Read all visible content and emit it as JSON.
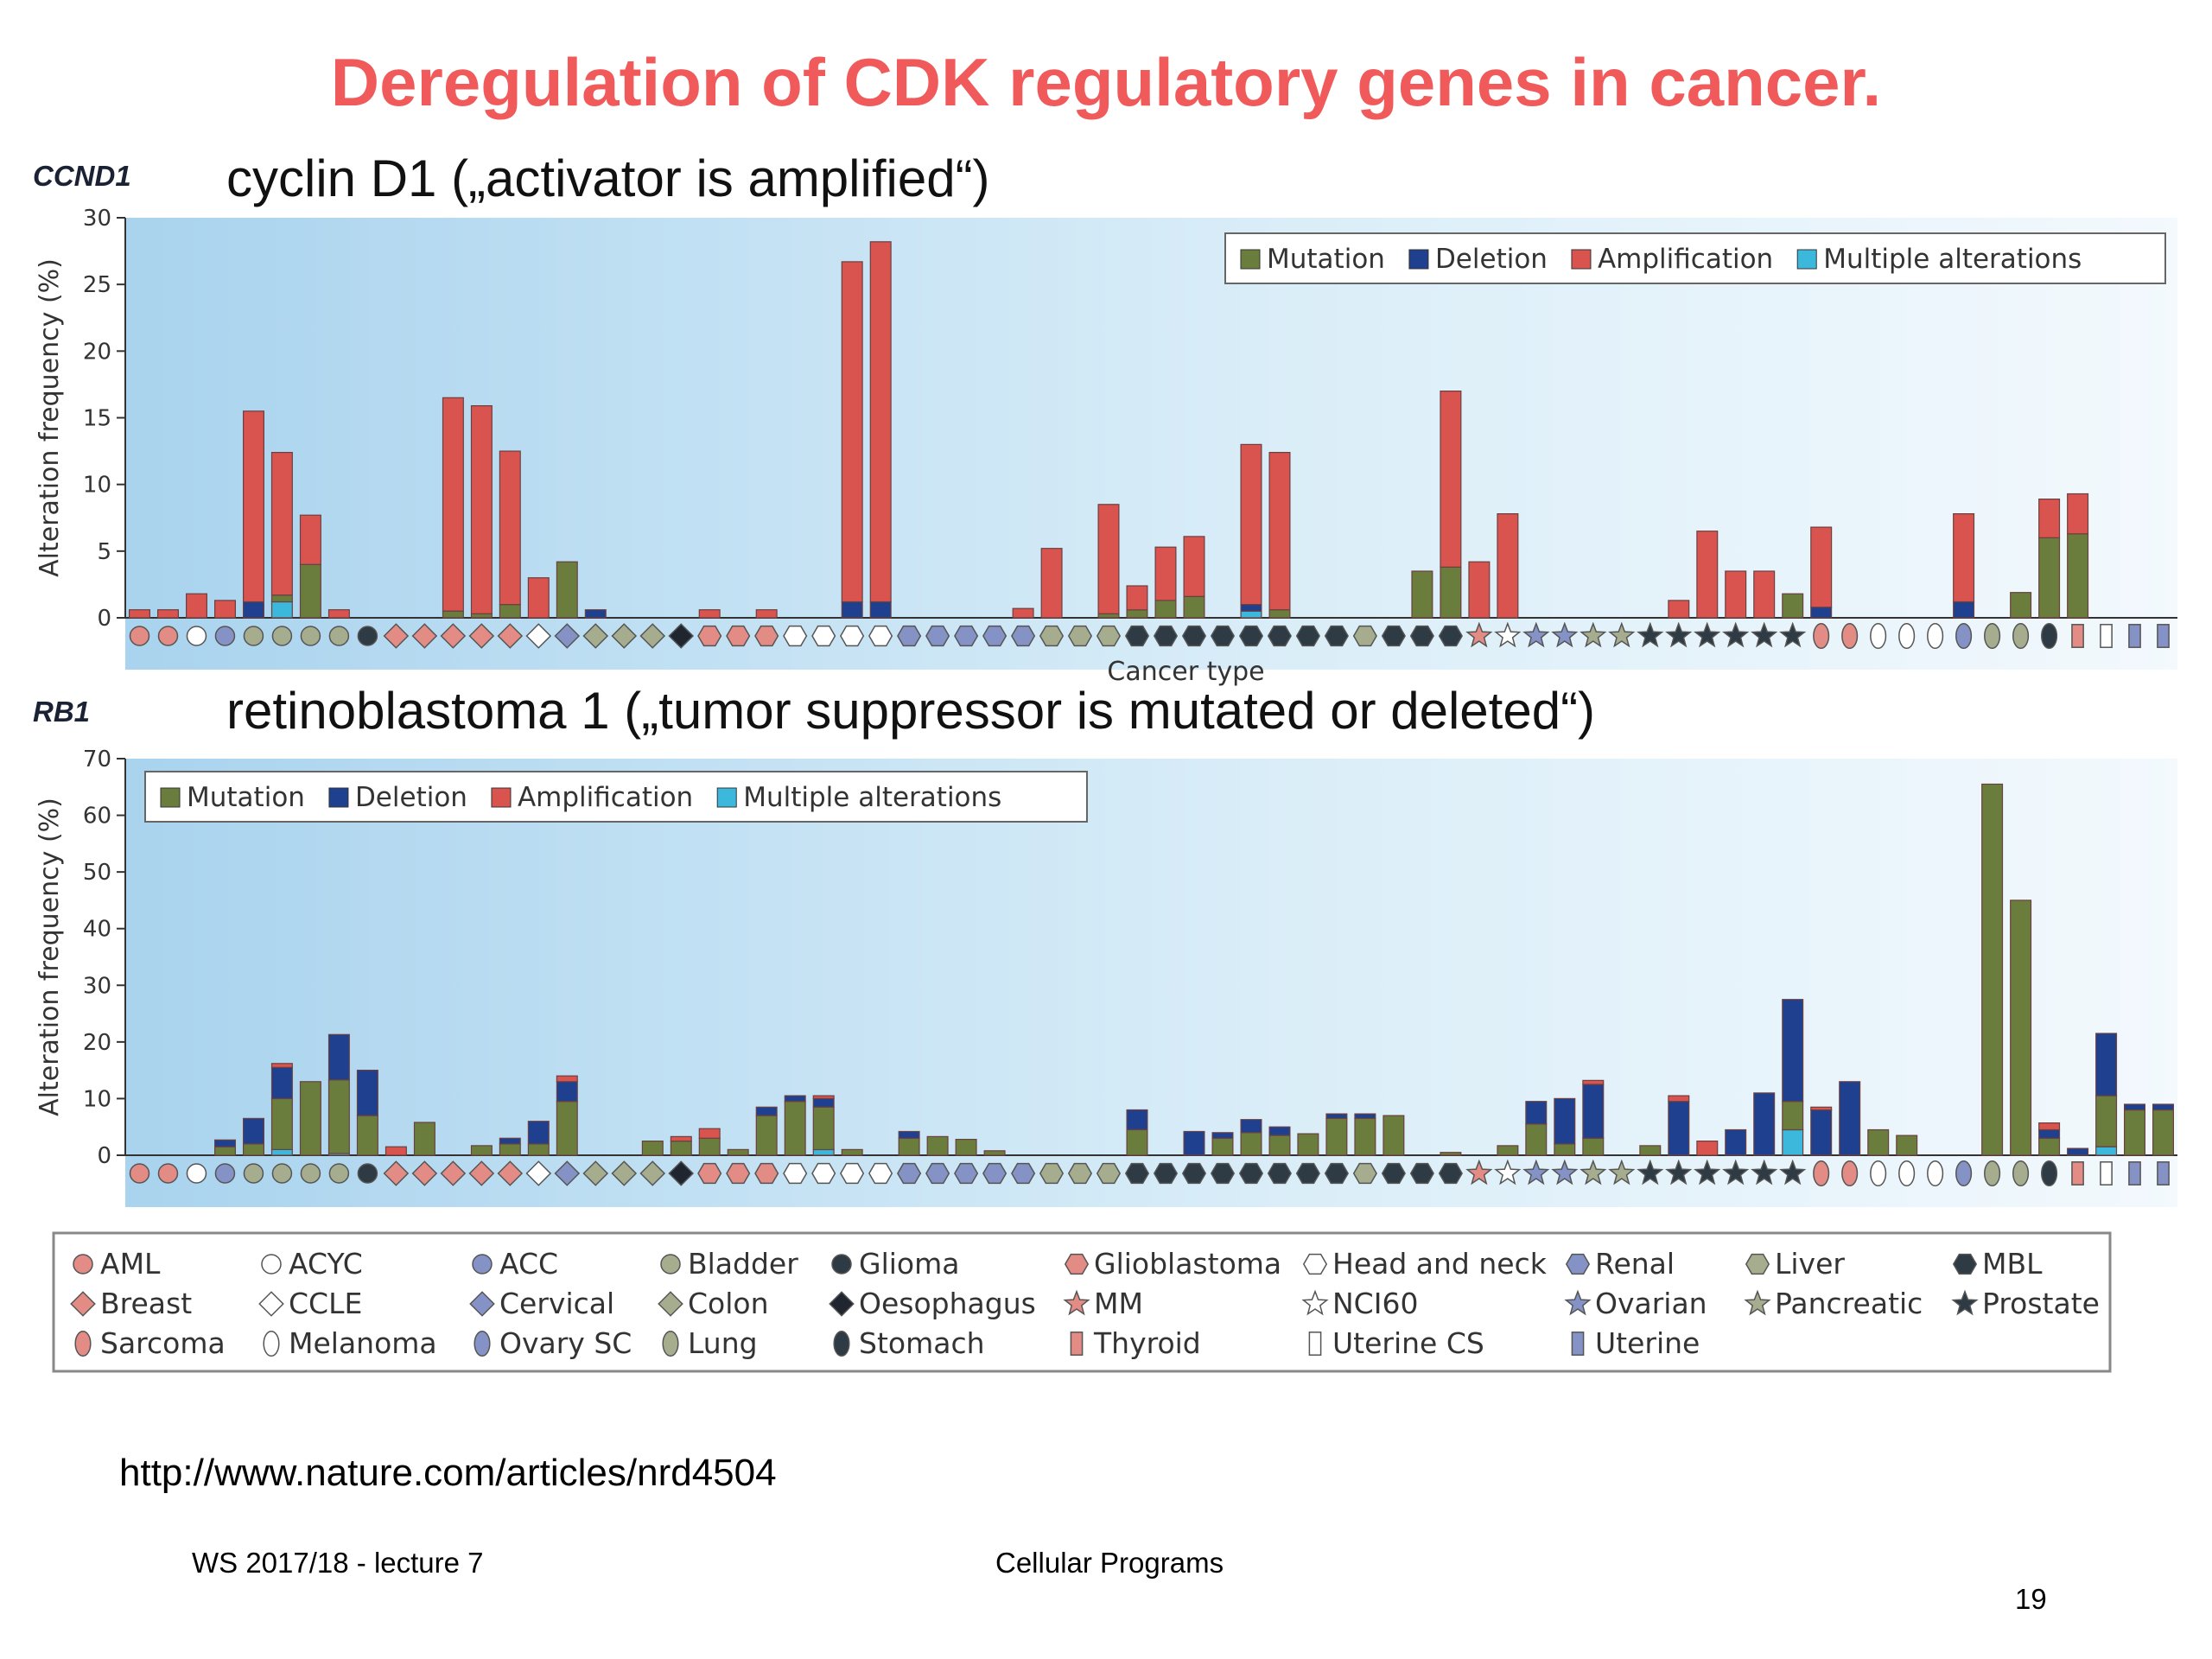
{
  "slide": {
    "title": "Deregulation of CDK regulatory genes in cancer.",
    "top_gene": "CCND1",
    "top_subtitle": "cyclin D1 („activator is amplified“)",
    "bottom_gene": "RB1",
    "bottom_subtitle": "retinoblastoma 1 („tumor suppressor is mutated or deleted“)",
    "url": "http://www.nature.com/articles/nrd4504",
    "footer_left": "WS 2017/18 - lecture 7",
    "footer_center": "Cellular Programs",
    "page_number": "19"
  },
  "colors": {
    "title": "#f05a5a",
    "Mutation": "#6b7d3c",
    "Deletion": "#1f3f8f",
    "Amplification": "#d9534f",
    "Multiple alterations": "#3cb8dd"
  },
  "legend_keys": [
    "Mutation",
    "Deletion",
    "Amplification",
    "Multiple alterations"
  ],
  "chart_data": [
    {
      "type": "bar",
      "stacked": true,
      "gene": "CCND1",
      "ylabel": "Alteration frequency (%)",
      "xlabel": "Cancer type",
      "ylim": [
        0,
        30
      ],
      "yticks": [
        0,
        5,
        10,
        15,
        20,
        25,
        30
      ],
      "legend_position": "top-right",
      "bars": [
        [
          0,
          0,
          0.6,
          0
        ],
        [
          0,
          0,
          0.6,
          0
        ],
        [
          0,
          0,
          1.8,
          0
        ],
        [
          0,
          0,
          1.3,
          0
        ],
        [
          0,
          1.2,
          14.3,
          0
        ],
        [
          0.5,
          0,
          10.7,
          1.2
        ],
        [
          4.0,
          0,
          3.7,
          0
        ],
        [
          0,
          0,
          0.6,
          0
        ],
        null,
        null,
        null,
        [
          0.5,
          0,
          16.0,
          0
        ],
        [
          0.3,
          0,
          15.6,
          0
        ],
        [
          1.0,
          0,
          11.5,
          0
        ],
        [
          0,
          0,
          3.0,
          0
        ],
        [
          4.2,
          0,
          0,
          0
        ],
        [
          0,
          0.6,
          0,
          0
        ],
        null,
        null,
        null,
        [
          0,
          0,
          0.6,
          0
        ],
        null,
        [
          0,
          0,
          0.6,
          0
        ],
        null,
        null,
        [
          0,
          1.2,
          25.5,
          0
        ],
        [
          0,
          1.2,
          27.0,
          0
        ],
        null,
        null,
        null,
        null,
        [
          0,
          0,
          0.7,
          0
        ],
        [
          0,
          0,
          5.2,
          0
        ],
        null,
        [
          0.3,
          0,
          8.2,
          0
        ],
        [
          0.6,
          0,
          1.8,
          0
        ],
        [
          1.3,
          0,
          4.0,
          0
        ],
        [
          1.6,
          0,
          4.5,
          0
        ],
        null,
        [
          0,
          0.5,
          12.0,
          0.5
        ],
        [
          0.6,
          0,
          11.8,
          0
        ],
        null,
        null,
        null,
        null,
        [
          3.5,
          0,
          0,
          0
        ],
        [
          3.8,
          0,
          13.2,
          0
        ],
        [
          0,
          0,
          4.2,
          0
        ],
        [
          0,
          0,
          7.8,
          0
        ],
        null,
        null,
        null,
        null,
        null,
        [
          0,
          0,
          1.3,
          0
        ],
        [
          0,
          0,
          6.5,
          0
        ],
        [
          0,
          0,
          3.5,
          0
        ],
        [
          0,
          0,
          3.5,
          0
        ],
        [
          1.8,
          0,
          0,
          0
        ],
        [
          0,
          0.8,
          6.0,
          0
        ],
        null,
        null,
        null,
        null,
        [
          0,
          1.2,
          6.6,
          0
        ],
        null,
        [
          1.9,
          0,
          0,
          0
        ],
        [
          6.0,
          0,
          2.9,
          0
        ],
        [
          6.3,
          0,
          3.0,
          0
        ]
      ]
    },
    {
      "type": "bar",
      "stacked": true,
      "gene": "RB1",
      "ylabel": "Alteration frequency (%)",
      "xlabel": "",
      "ylim": [
        0,
        70
      ],
      "yticks": [
        0,
        10,
        20,
        30,
        40,
        50,
        60,
        70
      ],
      "legend_position": "top-left",
      "bars": [
        null,
        null,
        null,
        [
          1.5,
          1.2,
          0,
          0
        ],
        [
          2.0,
          4.5,
          0,
          0
        ],
        [
          9.0,
          5.5,
          0.7,
          1.0
        ],
        [
          13.0,
          0,
          0,
          0
        ],
        [
          13.0,
          8.0,
          0,
          0.3
        ],
        [
          7.0,
          8.0,
          0,
          0
        ],
        [
          0,
          0,
          1.5,
          0
        ],
        [
          5.8,
          0,
          0,
          0
        ],
        null,
        [
          1.7,
          0,
          0,
          0
        ],
        [
          2.0,
          1.0,
          0,
          0
        ],
        [
          2.0,
          4.0,
          0,
          0
        ],
        [
          9.5,
          3.5,
          1.0,
          0
        ],
        null,
        null,
        [
          2.5,
          0,
          0,
          0
        ],
        [
          2.5,
          0,
          0.8,
          0
        ],
        [
          3.0,
          0,
          1.7,
          0
        ],
        [
          1.0,
          0,
          0,
          0
        ],
        [
          7.0,
          1.5,
          0,
          0
        ],
        [
          9.5,
          1.0,
          0,
          0
        ],
        [
          7.5,
          1.5,
          0.5,
          1.0
        ],
        [
          1.0,
          0,
          0,
          0
        ],
        null,
        [
          3.0,
          1.2,
          0,
          0
        ],
        [
          3.3,
          0,
          0,
          0
        ],
        [
          2.8,
          0,
          0,
          0
        ],
        [
          0.8,
          0,
          0,
          0
        ],
        null,
        null,
        null,
        null,
        [
          4.5,
          3.5,
          0,
          0
        ],
        null,
        [
          0,
          4.2,
          0,
          0
        ],
        [
          3.0,
          1.0,
          0,
          0
        ],
        [
          4.0,
          2.3,
          0,
          0
        ],
        [
          3.5,
          1.5,
          0,
          0
        ],
        [
          3.8,
          0,
          0,
          0
        ],
        [
          6.5,
          0.8,
          0,
          0
        ],
        [
          6.5,
          0.8,
          0,
          0
        ],
        [
          7.0,
          0,
          0,
          0
        ],
        null,
        [
          0.5,
          0,
          0,
          0
        ],
        null,
        [
          1.7,
          0,
          0,
          0
        ],
        [
          5.5,
          4.0,
          0,
          0
        ],
        [
          2.0,
          8.0,
          0,
          0
        ],
        [
          3.0,
          9.5,
          0.7,
          0
        ],
        null,
        [
          1.7,
          0,
          0,
          0
        ],
        [
          0,
          9.5,
          1.0,
          0
        ],
        [
          0,
          0,
          2.5,
          0
        ],
        [
          0,
          4.5,
          0,
          0
        ],
        [
          0,
          11.0,
          0,
          0
        ],
        [
          5.0,
          18.0,
          0,
          4.5
        ],
        [
          0,
          8.0,
          0.5,
          0
        ],
        [
          0,
          13.0,
          0,
          0
        ],
        [
          4.5,
          0,
          0,
          0
        ],
        [
          3.5,
          0,
          0,
          0
        ],
        null,
        null,
        [
          65.5,
          0,
          0,
          0
        ],
        [
          45.0,
          0,
          0,
          0
        ],
        [
          3.0,
          1.5,
          1.2,
          0
        ],
        [
          0,
          1.2,
          0,
          0
        ],
        [
          9.0,
          11.0,
          0,
          1.5
        ],
        [
          8.0,
          1.0,
          0,
          0
        ],
        [
          8.0,
          1.0,
          0,
          0
        ]
      ]
    }
  ],
  "cancer_types": [
    {
      "name": "AML",
      "shape": "circle",
      "color": "#e38b85"
    },
    {
      "name": "ACYC",
      "shape": "circle",
      "color": "#ffffff"
    },
    {
      "name": "ACC",
      "shape": "circle",
      "color": "#8492c6"
    },
    {
      "name": "Bladder",
      "shape": "circle",
      "color": "#a6ad8e"
    },
    {
      "name": "Glioma",
      "shape": "circle",
      "color": "#2e3a44"
    },
    {
      "name": "Glioblastoma",
      "shape": "hexagon",
      "color": "#e38b85"
    },
    {
      "name": "Head and neck",
      "shape": "hexagon",
      "color": "#ffffff"
    },
    {
      "name": "Renal",
      "shape": "hexagon",
      "color": "#8492c6"
    },
    {
      "name": "Liver",
      "shape": "hexagon",
      "color": "#a6ad8e"
    },
    {
      "name": "MBL",
      "shape": "hexagon",
      "color": "#2e3a44"
    },
    {
      "name": "Breast",
      "shape": "diamond",
      "color": "#e38b85"
    },
    {
      "name": "CCLE",
      "shape": "diamond",
      "color": "#ffffff"
    },
    {
      "name": "Cervical",
      "shape": "diamond",
      "color": "#8492c6"
    },
    {
      "name": "Colon",
      "shape": "diamond",
      "color": "#a6ad8e"
    },
    {
      "name": "Oesophagus",
      "shape": "diamond",
      "color": "#1f2630"
    },
    {
      "name": "MM",
      "shape": "star",
      "color": "#e38b85"
    },
    {
      "name": "NCI60",
      "shape": "star",
      "color": "#ffffff"
    },
    {
      "name": "Ovarian",
      "shape": "star",
      "color": "#8492c6"
    },
    {
      "name": "Pancreatic",
      "shape": "star",
      "color": "#a6ad8e"
    },
    {
      "name": "Prostate",
      "shape": "star",
      "color": "#2e3a44"
    },
    {
      "name": "Sarcoma",
      "shape": "oval",
      "color": "#e38b85"
    },
    {
      "name": "Melanoma",
      "shape": "oval",
      "color": "#ffffff"
    },
    {
      "name": "Ovary SC",
      "shape": "oval",
      "color": "#8492c6"
    },
    {
      "name": "Lung",
      "shape": "oval",
      "color": "#a6ad8e"
    },
    {
      "name": "Stomach",
      "shape": "oval",
      "color": "#2e3a44"
    },
    {
      "name": "Thyroid",
      "shape": "rect",
      "color": "#e38b85"
    },
    {
      "name": "Uterine CS",
      "shape": "rect",
      "color": "#ffffff"
    },
    {
      "name": "Uterine",
      "shape": "rect",
      "color": "#8492c6"
    }
  ],
  "x_axis_markers": [
    "AML",
    "AML",
    "ACYC",
    "ACC",
    "Bladder",
    "Bladder",
    "Bladder",
    "Bladder",
    "Glioma",
    "Breast",
    "Breast",
    "Breast",
    "Breast",
    "Breast",
    "CCLE",
    "Cervical",
    "Colon",
    "Colon",
    "Colon",
    "Oesophagus",
    "Glioblastoma",
    "Glioblastoma",
    "Glioblastoma",
    "Head and neck",
    "Head and neck",
    "Head and neck",
    "Head and neck",
    "Renal",
    "Renal",
    "Renal",
    "Renal",
    "Renal",
    "Liver",
    "Liver",
    "Liver",
    "MBL",
    "MBL",
    "MBL",
    "MBL",
    "MBL",
    "MBL",
    "MBL",
    "MBL",
    "Liver",
    "MBL",
    "MBL",
    "MBL",
    "MM",
    "NCI60",
    "Ovarian",
    "Ovarian",
    "Pancreatic",
    "Pancreatic",
    "Prostate",
    "Prostate",
    "Prostate",
    "Prostate",
    "Prostate",
    "Prostate",
    "Sarcoma",
    "Sarcoma",
    "Melanoma",
    "Melanoma",
    "Melanoma",
    "Ovary SC",
    "Lung",
    "Lung",
    "Stomach",
    "Thyroid",
    "Uterine CS",
    "Uterine",
    "Uterine"
  ]
}
